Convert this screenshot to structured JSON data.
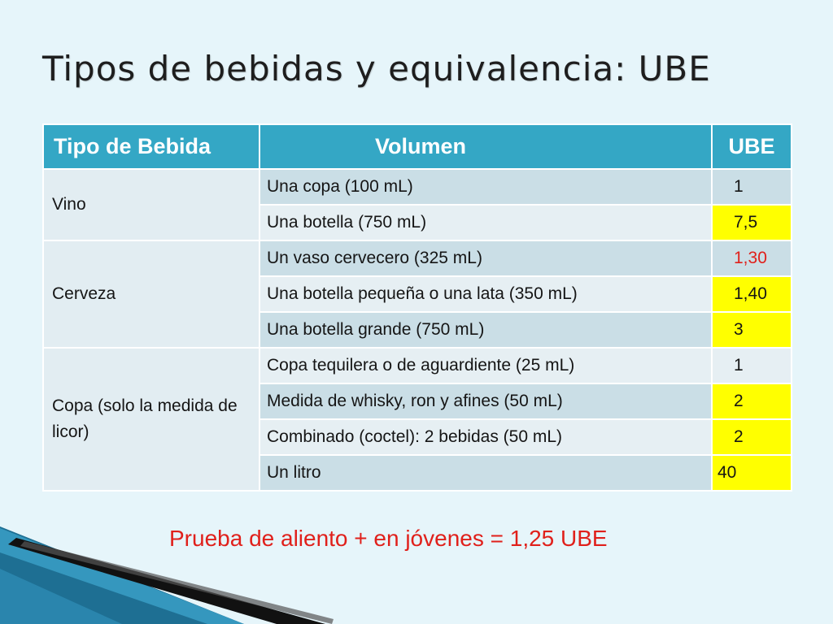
{
  "title": "Tipos de bebidas y equivalencia: UBE",
  "table": {
    "headers": [
      "Tipo de Bebida",
      "Volumen",
      "UBE"
    ],
    "groups": [
      {
        "type": "Vino",
        "rows": [
          {
            "volume": "Una copa (100 mL)",
            "ube": "1"
          },
          {
            "volume": "Una botella (750 mL)",
            "ube": "7,5"
          }
        ]
      },
      {
        "type": "Cerveza",
        "rows": [
          {
            "volume": "Un vaso cervecero (325 mL)",
            "ube": "1,30"
          },
          {
            "volume": "Una botella pequeña o una lata (350 mL)",
            "ube": "1,40"
          },
          {
            "volume": "Una botella grande (750 mL)",
            "ube": "3"
          }
        ]
      },
      {
        "type": "Copa (solo la medida de licor)",
        "rows": [
          {
            "volume": "Copa tequilera o de aguardiente (25 mL)",
            "ube": "1"
          },
          {
            "volume": "Medida de whisky, ron y afines (50 mL)",
            "ube": "2"
          },
          {
            "volume": "Combinado (coctel): 2 bebidas (50 mL)",
            "ube": "2"
          },
          {
            "volume": "Un litro",
            "ube": "40"
          }
        ]
      }
    ]
  },
  "note": "Prueba de aliento + en jóvenes = 1,25 UBE",
  "colors": {
    "background": "#e6f5fa",
    "header": "#34a7c5",
    "highlight": "#ffff00",
    "accent_red": "#e0201b"
  }
}
